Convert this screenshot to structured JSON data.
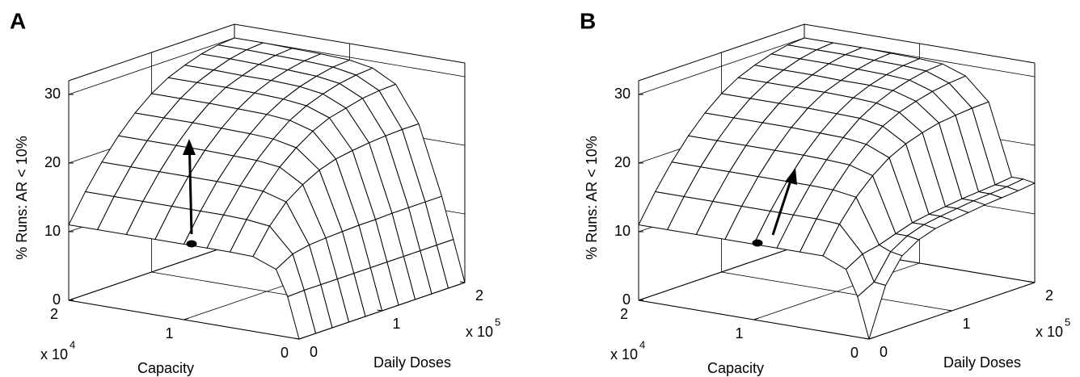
{
  "chart_data": [
    {
      "type": "surface",
      "panel_label": "A",
      "zlabel": "% Runs: AR < 10%",
      "xlabel": "Daily Doses",
      "ylabel": "Capacity",
      "x_scale": {
        "base": "x 10",
        "exponent": "5"
      },
      "y_scale": {
        "base": "x 10",
        "exponent": "4"
      },
      "color": "#000000",
      "surface_fill": "#ffffff",
      "grid": true,
      "xlim": [
        0,
        2
      ],
      "ylim": [
        0,
        2
      ],
      "zlim": [
        0,
        32
      ],
      "xticks": [
        0,
        1,
        2
      ],
      "yticks": [
        0,
        1,
        2
      ],
      "zticks": [
        0,
        10,
        20,
        30
      ],
      "x": [
        0,
        0.2,
        0.4,
        0.6,
        0.8,
        1,
        1.2,
        1.4,
        1.6,
        1.8,
        2
      ],
      "y": [
        0,
        0.1,
        0.2,
        0.4,
        0.6,
        0.8,
        1,
        1.25,
        1.5,
        1.75,
        2
      ],
      "z": [
        [
          0,
          0,
          0,
          0,
          0,
          0,
          0,
          0,
          0,
          0,
          0
        ],
        [
          5.9,
          6,
          6,
          6,
          6,
          6,
          6,
          6,
          6,
          6,
          6
        ],
        [
          9.6,
          11,
          11.5,
          11.7,
          11.8,
          11.9,
          11.9,
          12,
          12,
          12,
          12
        ],
        [
          10.9,
          14.5,
          17.2,
          18.9,
          20.2,
          21,
          21.4,
          21.7,
          21.9,
          22,
          22
        ],
        [
          11,
          14.9,
          18.2,
          20.9,
          22.9,
          24.5,
          25.6,
          26.2,
          26.8,
          27.1,
          27.2
        ],
        [
          11,
          15,
          18.4,
          21.3,
          23.6,
          25.5,
          26.8,
          27.7,
          28.4,
          28.8,
          29
        ],
        [
          11,
          15,
          18.5,
          21.4,
          23.8,
          25.8,
          27.2,
          28.2,
          28.9,
          29.4,
          29.6
        ],
        [
          11,
          15,
          18.5,
          21.5,
          23.9,
          25.9,
          27.4,
          28.4,
          29.1,
          29.6,
          29.8
        ],
        [
          11,
          15,
          18.5,
          21.5,
          24,
          26,
          27.5,
          28.4,
          29.2,
          29.7,
          29.9
        ],
        [
          11,
          15,
          18.5,
          21.5,
          24,
          26,
          27.5,
          28.5,
          29.3,
          29.8,
          30
        ],
        [
          11,
          15,
          18.5,
          21.5,
          24,
          26,
          27.5,
          28.5,
          29.3,
          29.8,
          30
        ]
      ]
    },
    {
      "type": "surface",
      "panel_label": "B",
      "zlabel": "% Runs: AR < 10%",
      "xlabel": "Daily Doses",
      "ylabel": "Capacity",
      "x_scale": {
        "base": "x 10",
        "exponent": "5"
      },
      "y_scale": {
        "base": "x 10",
        "exponent": "4"
      },
      "color": "#000000",
      "surface_fill": "#ffffff",
      "grid": true,
      "xlim": [
        0,
        2
      ],
      "ylim": [
        0,
        2
      ],
      "zlim": [
        0,
        32
      ],
      "xticks": [
        0,
        1,
        2
      ],
      "yticks": [
        0,
        1,
        2
      ],
      "zticks": [
        0,
        10,
        20,
        30
      ],
      "x": [
        0,
        0.2,
        0.4,
        0.6,
        0.8,
        1,
        1.2,
        1.4,
        1.6,
        1.8,
        2
      ],
      "y": [
        0,
        0.1,
        0.2,
        0.4,
        0.6,
        0.8,
        1,
        1.25,
        1.5,
        1.75,
        2
      ],
      "z": [
        [
          0,
          7,
          10.5,
          12,
          12.8,
          13.2,
          13.5,
          13.8,
          14,
          14.2,
          14.5
        ],
        [
          5.9,
          7.2,
          10.8,
          12.3,
          13.1,
          13.5,
          13.8,
          14.1,
          14.3,
          14.5,
          14.8
        ],
        [
          9.6,
          11,
          11.5,
          12.3,
          13.1,
          13.5,
          13.8,
          14.1,
          14.3,
          14.5,
          14.8
        ],
        [
          11,
          14.8,
          17.9,
          20.2,
          22,
          23.2,
          24,
          24.6,
          24.9,
          25.1,
          25.2
        ],
        [
          11,
          15,
          18.4,
          21.2,
          23.4,
          25.2,
          26.4,
          27.2,
          27.8,
          28.2,
          28.4
        ],
        [
          11,
          15,
          18.5,
          21.4,
          23.8,
          25.8,
          27.2,
          28.2,
          28.9,
          29.4,
          29.6
        ],
        [
          11,
          15,
          18.5,
          21.5,
          23.9,
          25.9,
          27.4,
          28.4,
          29.1,
          29.6,
          29.8
        ],
        [
          11,
          15,
          18.5,
          21.5,
          24,
          26,
          27.5,
          28.4,
          29.2,
          29.7,
          29.9
        ],
        [
          11,
          15,
          18.5,
          21.5,
          24,
          26,
          27.5,
          28.5,
          29.3,
          29.8,
          30
        ],
        [
          11,
          15,
          18.5,
          21.5,
          24,
          26,
          27.5,
          28.5,
          29.3,
          29.8,
          30
        ],
        [
          11,
          15,
          18.5,
          21.5,
          24,
          26,
          27.5,
          28.5,
          29.3,
          29.8,
          30
        ]
      ]
    }
  ]
}
